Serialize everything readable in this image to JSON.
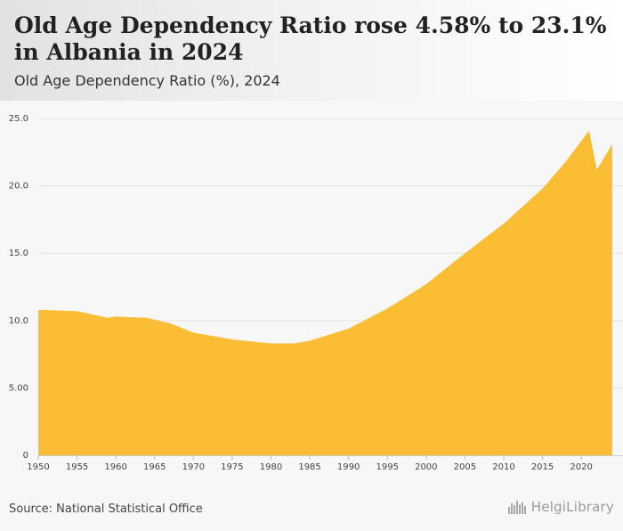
{
  "header": {
    "title": "Old Age Dependency Ratio rose 4.58% to 23.1% in Albania in 2024",
    "subtitle": "Old Age Dependency Ratio (%), 2024"
  },
  "footer": {
    "source": "Source: National Statistical Office",
    "logo_text": "HelgiLibrary"
  },
  "colors": {
    "area_fill": "#fbbd33",
    "grid": "#e3e3e3"
  },
  "icons": {
    "logo": "city-skyline-icon"
  },
  "chart_data": {
    "type": "area",
    "title": "",
    "xlabel": "",
    "ylabel": "",
    "xlim": [
      1950,
      2024
    ],
    "ylim": [
      0,
      25
    ],
    "yticks": [
      0,
      5,
      10,
      15,
      20,
      25
    ],
    "ytick_labels": [
      "0",
      "5.00",
      "10.0",
      "15.0",
      "20.0",
      "25.0"
    ],
    "xticks": [
      1950,
      1955,
      1960,
      1965,
      1970,
      1975,
      1980,
      1985,
      1990,
      1995,
      2000,
      2005,
      2010,
      2015,
      2020
    ],
    "xtick_labels": [
      "1950",
      "1955",
      "1960",
      "1965",
      "1970",
      "1975",
      "1980",
      "1985",
      "1990",
      "1995",
      "2000",
      "2005",
      "2010",
      "2015",
      "2020"
    ],
    "grid": true,
    "legend": "none",
    "series": [
      {
        "x": [
          1950,
          1955,
          1959,
          1960,
          1964,
          1967,
          1970,
          1975,
          1980,
          1983,
          1985,
          1990,
          1995,
          2000,
          2005,
          2010,
          2015,
          2018,
          2021,
          2022,
          2024
        ],
        "values": [
          10.8,
          10.7,
          10.2,
          10.3,
          10.2,
          9.8,
          9.1,
          8.6,
          8.3,
          8.3,
          8.5,
          9.4,
          10.9,
          12.7,
          15.0,
          17.2,
          19.8,
          21.8,
          24.1,
          21.2,
          23.1
        ]
      }
    ]
  }
}
